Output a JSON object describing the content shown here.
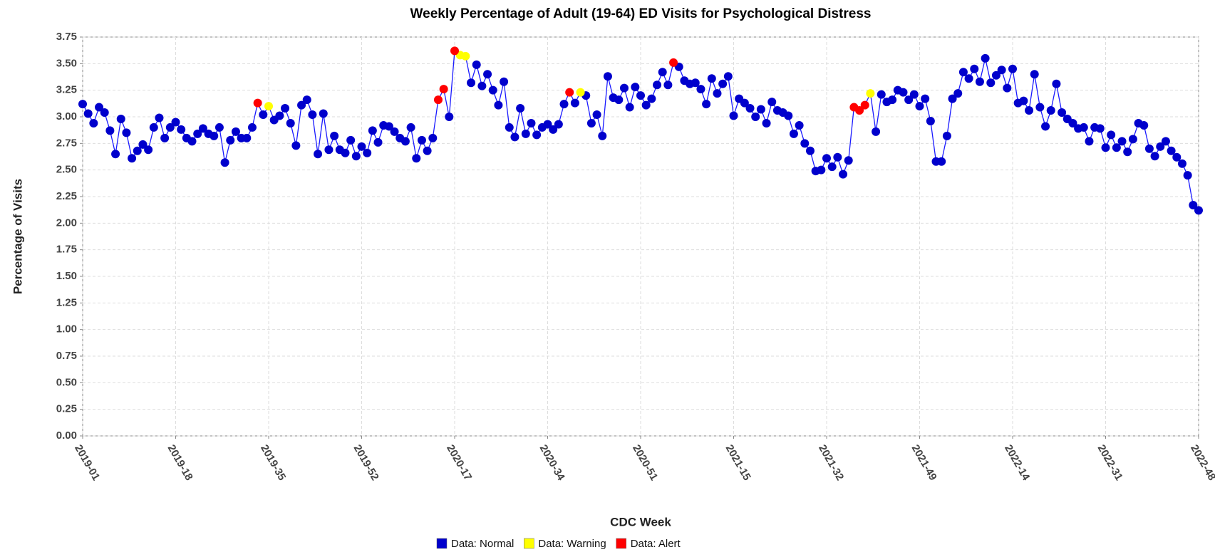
{
  "chart_data": {
    "type": "line",
    "title": "Weekly Percentage of Adult (19-64) ED Visits for Psychological Distress",
    "x_label": "CDC Week",
    "y_label": "Percentage of Visits",
    "categories": [
      "2019-01",
      null,
      null,
      null,
      null,
      null,
      null,
      null,
      null,
      null,
      null,
      null,
      null,
      null,
      null,
      null,
      null,
      "2019-18",
      null,
      null,
      null,
      null,
      null,
      null,
      null,
      null,
      null,
      null,
      null,
      null,
      null,
      null,
      null,
      null,
      "2019-35",
      null,
      null,
      null,
      null,
      null,
      null,
      null,
      null,
      null,
      null,
      null,
      null,
      null,
      null,
      null,
      null,
      "2019-52",
      null,
      null,
      null,
      null,
      null,
      null,
      null,
      null,
      null,
      null,
      null,
      null,
      null,
      null,
      null,
      null,
      "2020-17",
      null,
      null,
      null,
      null,
      null,
      null,
      null,
      null,
      null,
      null,
      null,
      null,
      null,
      null,
      null,
      null,
      "2020-34",
      null,
      null,
      null,
      null,
      null,
      null,
      null,
      null,
      null,
      null,
      null,
      null,
      null,
      null,
      null,
      null,
      "2020-51",
      null,
      null,
      null,
      null,
      null,
      null,
      null,
      null,
      null,
      null,
      null,
      null,
      null,
      null,
      null,
      null,
      "2021-15",
      null,
      null,
      null,
      null,
      null,
      null,
      null,
      null,
      null,
      null,
      null,
      null,
      null,
      null,
      null,
      null,
      "2021-32",
      null,
      null,
      null,
      null,
      null,
      null,
      null,
      null,
      null,
      null,
      null,
      null,
      null,
      null,
      null,
      null,
      "2021-49",
      null,
      null,
      null,
      null,
      null,
      null,
      null,
      null,
      null,
      null,
      null,
      null,
      null,
      null,
      null,
      null,
      "2022-14",
      null,
      null,
      null,
      null,
      null,
      null,
      null,
      null,
      null,
      null,
      null,
      null,
      null,
      null,
      null,
      null,
      "2022-31",
      null,
      null,
      null,
      null,
      null,
      null,
      null,
      null,
      null,
      null,
      null,
      null,
      null,
      null,
      null,
      null,
      "2022-48"
    ],
    "series": [
      {
        "name": "Data: Normal",
        "color": "#0000cc",
        "values": [
          3.12,
          3.03,
          2.94,
          3.09,
          3.04,
          2.87,
          2.65,
          2.98,
          2.85,
          2.61,
          2.68,
          2.74,
          2.69,
          2.9,
          2.99,
          2.8,
          2.9,
          2.95,
          2.88,
          2.8,
          2.77,
          2.84,
          2.89,
          2.84,
          2.82,
          2.9,
          2.57,
          2.78,
          2.86,
          2.8,
          2.8,
          2.9,
          null,
          3.02,
          null,
          2.97,
          3.01,
          3.08,
          2.94,
          2.73,
          3.11,
          3.16,
          3.02,
          2.65,
          3.03,
          2.69,
          2.82,
          2.69,
          2.66,
          2.78,
          2.63,
          2.72,
          2.66,
          2.87,
          2.76,
          2.92,
          2.91,
          2.86,
          2.8,
          2.77,
          2.9,
          2.61,
          2.78,
          2.68,
          2.8,
          null,
          null,
          3.0,
          null,
          null,
          null,
          3.32,
          3.49,
          3.29,
          3.4,
          3.25,
          3.11,
          3.33,
          2.9,
          2.81,
          3.08,
          2.84,
          2.94,
          2.83,
          2.9,
          2.93,
          2.88,
          2.93,
          3.12,
          null,
          3.13,
          null,
          3.2,
          2.94,
          3.02,
          2.82,
          3.38,
          3.18,
          3.16,
          3.27,
          3.09,
          3.28,
          3.2,
          3.11,
          3.17,
          3.3,
          3.42,
          3.3,
          null,
          3.47,
          3.34,
          3.31,
          3.32,
          3.26,
          3.12,
          3.36,
          3.22,
          3.31,
          3.38,
          3.01,
          3.17,
          3.13,
          3.08,
          3.0,
          3.07,
          2.94,
          3.14,
          3.06,
          3.04,
          3.01,
          2.84,
          2.92,
          2.75,
          2.68,
          2.49,
          2.5,
          2.61,
          2.53,
          2.62,
          2.46,
          2.59,
          null,
          null,
          null,
          null,
          2.86,
          3.21,
          3.14,
          3.16,
          3.25,
          3.23,
          3.16,
          3.21,
          3.1,
          3.17,
          2.96,
          2.58,
          2.58,
          2.82,
          3.17,
          3.22,
          3.42,
          3.36,
          3.45,
          3.33,
          3.55,
          3.32,
          3.39,
          3.44,
          3.27,
          3.45,
          3.13,
          3.15,
          3.06,
          3.4,
          3.09,
          2.91,
          3.06,
          3.31,
          3.04,
          2.98,
          2.94,
          2.89,
          2.9,
          2.77,
          2.9,
          2.89,
          2.71,
          2.83,
          2.71,
          2.77,
          2.67,
          2.79,
          2.94,
          2.92,
          2.7,
          2.63,
          2.72,
          2.77,
          2.68,
          2.62,
          2.56,
          2.45,
          2.17,
          2.12
        ]
      },
      {
        "name": "Data: Warning",
        "color": "#ffff00",
        "values": [
          null,
          null,
          null,
          null,
          null,
          null,
          null,
          null,
          null,
          null,
          null,
          null,
          null,
          null,
          null,
          null,
          null,
          null,
          null,
          null,
          null,
          null,
          null,
          null,
          null,
          null,
          null,
          null,
          null,
          null,
          null,
          null,
          null,
          null,
          3.1,
          null,
          null,
          null,
          null,
          null,
          null,
          null,
          null,
          null,
          null,
          null,
          null,
          null,
          null,
          null,
          null,
          null,
          null,
          null,
          null,
          null,
          null,
          null,
          null,
          null,
          null,
          null,
          null,
          null,
          null,
          null,
          null,
          null,
          null,
          3.58,
          3.57,
          null,
          null,
          null,
          null,
          null,
          null,
          null,
          null,
          null,
          null,
          null,
          null,
          null,
          null,
          null,
          null,
          null,
          null,
          null,
          null,
          3.23,
          null,
          null,
          null,
          null,
          null,
          null,
          null,
          null,
          null,
          null,
          null,
          null,
          null,
          null,
          null,
          null,
          null,
          null,
          null,
          null,
          null,
          null,
          null,
          null,
          null,
          null,
          null,
          null,
          null,
          null,
          null,
          null,
          null,
          null,
          null,
          null,
          null,
          null,
          null,
          null,
          null,
          null,
          null,
          null,
          null,
          null,
          null,
          null,
          null,
          null,
          null,
          null,
          3.22,
          null,
          null,
          null,
          null,
          null,
          null,
          null,
          null,
          null,
          null,
          null,
          null,
          null,
          null,
          null,
          null,
          null,
          null,
          null,
          null,
          null,
          null,
          null,
          null,
          null,
          null,
          null,
          null,
          null,
          null,
          null,
          null,
          null,
          null,
          null,
          null,
          null,
          null,
          null,
          null,
          null,
          null,
          null,
          null,
          null,
          null,
          null,
          null,
          null,
          null,
          null,
          null,
          null,
          null,
          null,
          null,
          null,
          null,
          null,
          null
        ]
      },
      {
        "name": "Data: Alert",
        "color": "#ff0000",
        "values": [
          null,
          null,
          null,
          null,
          null,
          null,
          null,
          null,
          null,
          null,
          null,
          null,
          null,
          null,
          null,
          null,
          null,
          null,
          null,
          null,
          null,
          null,
          null,
          null,
          null,
          null,
          null,
          null,
          null,
          null,
          null,
          null,
          3.13,
          null,
          null,
          null,
          null,
          null,
          null,
          null,
          null,
          null,
          null,
          null,
          null,
          null,
          null,
          null,
          null,
          null,
          null,
          null,
          null,
          null,
          null,
          null,
          null,
          null,
          null,
          null,
          null,
          null,
          null,
          null,
          null,
          3.16,
          3.26,
          null,
          3.62,
          null,
          null,
          null,
          null,
          null,
          null,
          null,
          null,
          null,
          null,
          null,
          null,
          null,
          null,
          null,
          null,
          null,
          null,
          null,
          null,
          3.23,
          null,
          null,
          null,
          null,
          null,
          null,
          null,
          null,
          null,
          null,
          null,
          null,
          null,
          null,
          null,
          null,
          null,
          null,
          3.51,
          null,
          null,
          null,
          null,
          null,
          null,
          null,
          null,
          null,
          null,
          null,
          null,
          null,
          null,
          null,
          null,
          null,
          null,
          null,
          null,
          null,
          null,
          null,
          null,
          null,
          null,
          null,
          null,
          null,
          null,
          null,
          null,
          3.09,
          3.06,
          3.11,
          null,
          null,
          null,
          null,
          null,
          null,
          null,
          null,
          null,
          null,
          null,
          null,
          null,
          null,
          null,
          null,
          null,
          null,
          null,
          null,
          null,
          null,
          null,
          null,
          null,
          null,
          null,
          null,
          null,
          null,
          null,
          null,
          null,
          null,
          null,
          null,
          null,
          null,
          null,
          null,
          null,
          null,
          null,
          null,
          null,
          null,
          null,
          null,
          null,
          null,
          null,
          null,
          null,
          null,
          null,
          null,
          null,
          null,
          null,
          null,
          null
        ]
      }
    ],
    "ylim": [
      0,
      3.75
    ],
    "yticks": [
      {
        "value": 0,
        "label": "0.00"
      },
      0.25,
      {
        "value": 0.5,
        "label": "0.50"
      },
      0.75,
      {
        "value": 1,
        "label": "1.00"
      },
      1.25,
      {
        "value": 1.5,
        "label": "1.50"
      },
      1.75,
      {
        "value": 2,
        "label": "2.00"
      },
      2.25,
      {
        "value": 2.5,
        "label": "2.50"
      },
      2.75,
      {
        "value": 3,
        "label": "3.00"
      },
      3.25,
      {
        "value": 3.5,
        "label": "3.50"
      },
      3.75
    ],
    "grid": true,
    "legend": "bottom"
  }
}
